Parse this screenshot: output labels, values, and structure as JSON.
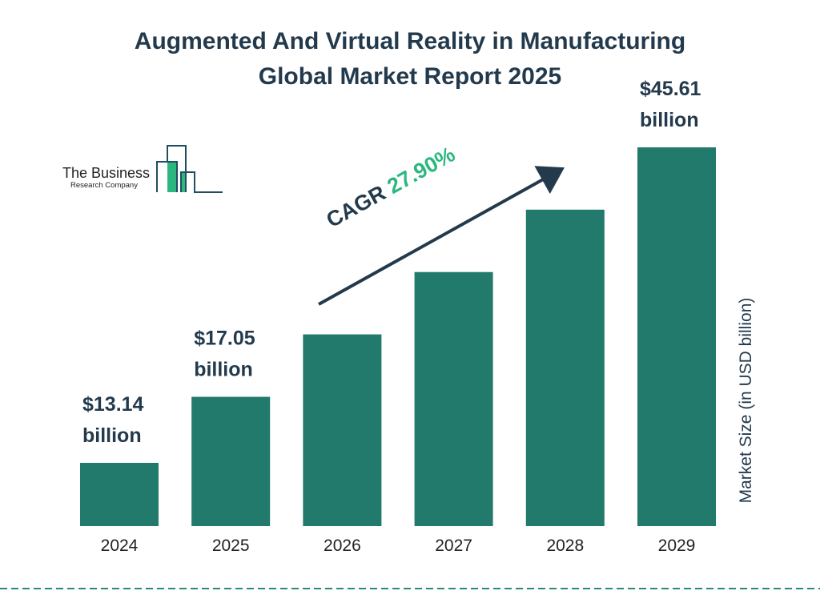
{
  "title": {
    "line1": "Augmented And Virtual Reality in Manufacturing",
    "line2": "Global Market Report 2025"
  },
  "logo": {
    "line1": "The Business",
    "line2": "Research Company"
  },
  "cagr": {
    "label": "CAGR",
    "value": "27.90%"
  },
  "colors": {
    "bar": "#217a6b",
    "text": "#233a4d",
    "accent": "#2bb77f",
    "dash": "#2a8a7a"
  },
  "chart_data": {
    "type": "bar",
    "categories": [
      "2024",
      "2025",
      "2026",
      "2027",
      "2028",
      "2029"
    ],
    "values": [
      13.14,
      17.05,
      21.81,
      27.89,
      35.67,
      45.61
    ],
    "data_labels": [
      {
        "index": 0,
        "line1": "$13.14",
        "line2": "billion"
      },
      {
        "index": 1,
        "line1": "$17.05",
        "line2": "billion"
      },
      {
        "index": 5,
        "line1": "$45.61",
        "line2": "billion"
      }
    ],
    "title": "Augmented And Virtual Reality in Manufacturing Global Market Report 2025",
    "xlabel": "",
    "ylabel": "Market Size (in USD billion)",
    "grid": false,
    "legend": "none"
  }
}
